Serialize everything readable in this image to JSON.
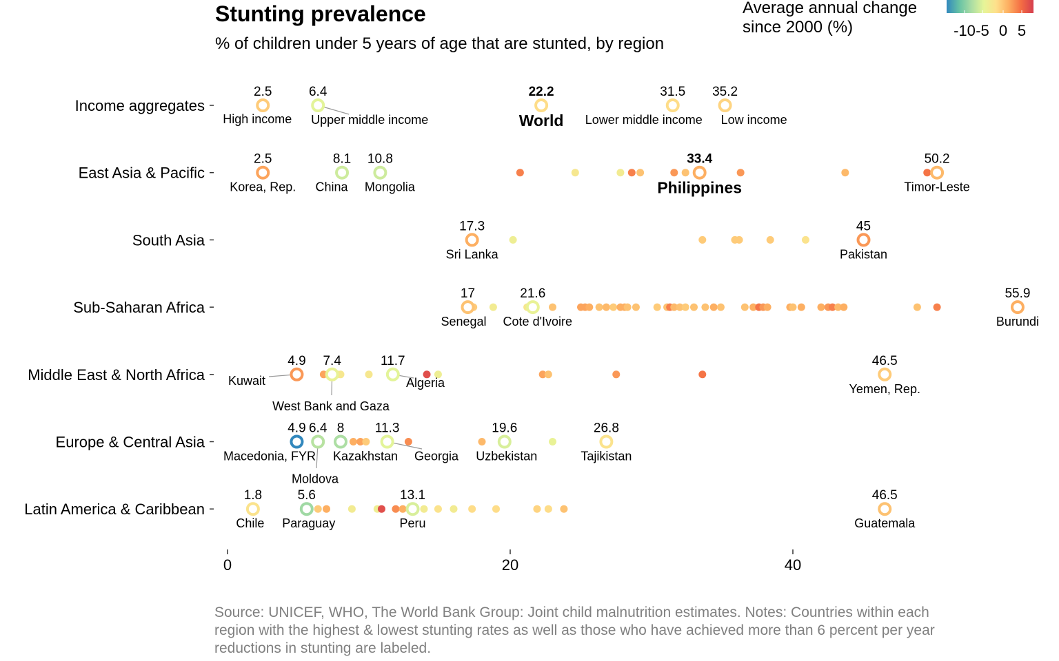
{
  "title": "Stunting prevalence",
  "subtitle": "% of children under 5 years of age that are stunted, by region",
  "legend": {
    "title_line1": "Average annual change",
    "title_line2": "since 2000 (%)",
    "ticks": [
      "-10",
      "-5",
      "0",
      "5"
    ],
    "colors": [
      "#3288bd",
      "#66c2a5",
      "#abdda4",
      "#e6f598",
      "#fee08b",
      "#fdae61",
      "#f46d43",
      "#d53e4f"
    ]
  },
  "source": "Source: UNICEF, WHO, The World Bank Group: Joint child malnutrition estimates. Notes: Countries within each region with the highest & lowest stunting rates as well as those who have achieved more than 6 percent per year reductions in stunting are labeled.",
  "chart_data": {
    "type": "scatter",
    "title": "Stunting prevalence",
    "subtitle": "% of children under 5 years of age that are stunted, by region",
    "xlabel": "",
    "ylabel": "",
    "xlim": [
      -1,
      56.5
    ],
    "x_ticks": [
      0,
      20,
      40
    ],
    "grid": false,
    "color_scale": {
      "name": "Average annual change since 2000 (%)",
      "range": [
        -12,
        7
      ]
    },
    "categories": [
      "Income aggregates",
      "East Asia & Pacific",
      "South Asia",
      "Sub-Saharan Africa",
      "Middle East & North Africa",
      "Europe & Central Asia",
      "Latin America & Caribbean"
    ],
    "series": [
      {
        "region": "Income aggregates",
        "points": [],
        "labeled": [
          {
            "x": 2.5,
            "value": "2.5",
            "label": "High income",
            "change": 0.0
          },
          {
            "x": 6.4,
            "value": "6.4",
            "label": "Upper middle income",
            "change": -4.0
          },
          {
            "x": 22.2,
            "value": "22.2",
            "label": "World",
            "change": -1.0,
            "emphasis": true
          },
          {
            "x": 31.5,
            "value": "31.5",
            "label": "Lower middle income",
            "change": -1.0
          },
          {
            "x": 35.2,
            "value": "35.2",
            "label": "Low income",
            "change": -0.5
          }
        ]
      },
      {
        "region": "East Asia & Pacific",
        "points": [
          {
            "x": 20.7,
            "change": 3.5
          },
          {
            "x": 24.6,
            "change": -2.0
          },
          {
            "x": 27.8,
            "change": -2.5
          },
          {
            "x": 28.6,
            "change": 3.5
          },
          {
            "x": 29.2,
            "change": 0.5
          },
          {
            "x": 31.6,
            "change": 2.5
          },
          {
            "x": 32.4,
            "change": 0.5
          },
          {
            "x": 36.3,
            "change": 2.5
          },
          {
            "x": 43.7,
            "change": 1.0
          },
          {
            "x": 49.5,
            "change": 4.0
          }
        ],
        "labeled": [
          {
            "x": 2.5,
            "value": "2.5",
            "label": "Korea, Rep.",
            "change": 2.0
          },
          {
            "x": 8.1,
            "value": "8.1",
            "label": "China",
            "change": -5.0
          },
          {
            "x": 10.8,
            "value": "10.8",
            "label": "Mongolia",
            "change": -5.0
          },
          {
            "x": 33.4,
            "value": "33.4",
            "label": "Philippines",
            "change": 1.5,
            "emphasis": true
          },
          {
            "x": 50.2,
            "value": "50.2",
            "label": "Timor-Leste",
            "change": 1.0
          }
        ]
      },
      {
        "region": "South Asia",
        "points": [
          {
            "x": 20.2,
            "change": -3.0
          },
          {
            "x": 33.6,
            "change": 0.0
          },
          {
            "x": 35.9,
            "change": 0.0
          },
          {
            "x": 36.2,
            "change": 0.0
          },
          {
            "x": 38.4,
            "change": 0.0
          },
          {
            "x": 40.9,
            "change": -1.5
          }
        ],
        "labeled": [
          {
            "x": 17.3,
            "value": "17.3",
            "label": "Sri Lanka",
            "change": 1.5
          },
          {
            "x": 45,
            "value": "45",
            "label": "Pakistan",
            "change": 2.5
          }
        ]
      },
      {
        "region": "Sub-Saharan Africa",
        "points": [
          {
            "x": 17.4,
            "change": 0.0
          },
          {
            "x": 18.8,
            "change": -2.5
          },
          {
            "x": 21.2,
            "change": -2.0
          },
          {
            "x": 23.0,
            "change": 0.5
          },
          {
            "x": 25.0,
            "change": 2.0
          },
          {
            "x": 25.3,
            "change": 2.0
          },
          {
            "x": 25.6,
            "change": 1.5
          },
          {
            "x": 26.3,
            "change": 0.5
          },
          {
            "x": 26.8,
            "change": 1.0
          },
          {
            "x": 27.3,
            "change": 0.0
          },
          {
            "x": 27.8,
            "change": 1.5
          },
          {
            "x": 28.1,
            "change": 1.5
          },
          {
            "x": 28.3,
            "change": 0.5
          },
          {
            "x": 28.9,
            "change": 0.5
          },
          {
            "x": 30.4,
            "change": 0.0
          },
          {
            "x": 31.1,
            "change": 0.5
          },
          {
            "x": 31.3,
            "change": 3.5
          },
          {
            "x": 31.6,
            "change": 1.0
          },
          {
            "x": 32.0,
            "change": 0.5
          },
          {
            "x": 32.4,
            "change": 0.0
          },
          {
            "x": 33.0,
            "change": 0.5
          },
          {
            "x": 33.8,
            "change": 0.5
          },
          {
            "x": 34.4,
            "change": 1.5
          },
          {
            "x": 34.9,
            "change": 0.5
          },
          {
            "x": 36.6,
            "change": 0.5
          },
          {
            "x": 37.2,
            "change": 1.5
          },
          {
            "x": 37.6,
            "change": 4.0
          },
          {
            "x": 37.9,
            "change": 2.5
          },
          {
            "x": 38.2,
            "change": 1.5
          },
          {
            "x": 39.8,
            "change": 1.5
          },
          {
            "x": 40.0,
            "change": 0.5
          },
          {
            "x": 40.6,
            "change": 1.5
          },
          {
            "x": 42.0,
            "change": 1.5
          },
          {
            "x": 42.5,
            "change": 2.5
          },
          {
            "x": 42.8,
            "change": 3.5
          },
          {
            "x": 43.2,
            "change": 1.0
          },
          {
            "x": 43.6,
            "change": 1.5
          },
          {
            "x": 48.8,
            "change": 0.5
          },
          {
            "x": 50.2,
            "change": 3.5
          }
        ],
        "labeled": [
          {
            "x": 17,
            "value": "17",
            "label": "Senegal",
            "change": 0.5
          },
          {
            "x": 21.6,
            "value": "21.6",
            "label": "Cote d'Ivoire",
            "change": -3.5
          },
          {
            "x": 55.9,
            "value": "55.9",
            "label": "Burundi",
            "change": 1.5
          }
        ]
      },
      {
        "region": "Middle East & North Africa",
        "points": [
          {
            "x": 6.8,
            "change": 2.0
          },
          {
            "x": 7.8,
            "change": -3.0
          },
          {
            "x": 8.0,
            "change": -2.0
          },
          {
            "x": 10.0,
            "change": -2.0
          },
          {
            "x": 14.1,
            "change": 6.0
          },
          {
            "x": 14.9,
            "change": -3.0
          },
          {
            "x": 22.3,
            "change": 2.0
          },
          {
            "x": 22.7,
            "change": 0.5
          },
          {
            "x": 27.5,
            "change": 2.5
          },
          {
            "x": 33.6,
            "change": 4.0
          }
        ],
        "labeled": [
          {
            "x": 4.9,
            "value": "4.9",
            "label": "Kuwait",
            "change": 2.5
          },
          {
            "x": 7.4,
            "value": "7.4",
            "label": "West Bank and Gaza",
            "change": -3.5
          },
          {
            "x": 11.7,
            "value": "11.7",
            "label": "Algeria",
            "change": -4.0
          },
          {
            "x": 46.5,
            "value": "46.5",
            "label": "Yemen, Rep.",
            "change": 0.0
          }
        ]
      },
      {
        "region": "Europe & Central Asia",
        "points": [
          {
            "x": 8.9,
            "change": 1.5
          },
          {
            "x": 9.4,
            "change": 2.0
          },
          {
            "x": 9.8,
            "change": 0.0
          },
          {
            "x": 12.8,
            "change": 3.0
          },
          {
            "x": 18.0,
            "change": 1.0
          },
          {
            "x": 23.0,
            "change": -3.5
          }
        ],
        "labeled": [
          {
            "x": 4.9,
            "value": "4.9",
            "label": "Macedonia, FYR",
            "change": -12.0
          },
          {
            "x": 6.4,
            "value": "6.4",
            "label": "Moldova",
            "change": -6.0
          },
          {
            "x": 8,
            "value": "8",
            "label": "Kazakhstan",
            "change": -6.5
          },
          {
            "x": 11.3,
            "value": "11.3",
            "label": "Georgia",
            "change": -4.0
          },
          {
            "x": 19.6,
            "value": "19.6",
            "label": "Uzbekistan",
            "change": -4.5
          },
          {
            "x": 26.8,
            "value": "26.8",
            "label": "Tajikistan",
            "change": -1.5
          }
        ]
      },
      {
        "region": "Latin America & Caribbean",
        "points": [
          {
            "x": 6.4,
            "change": 0.0
          },
          {
            "x": 7.0,
            "change": 1.5
          },
          {
            "x": 8.8,
            "change": -2.5
          },
          {
            "x": 10.6,
            "change": -3.0
          },
          {
            "x": 10.9,
            "change": 6.0
          },
          {
            "x": 11.9,
            "change": 3.0
          },
          {
            "x": 12.4,
            "change": 1.5
          },
          {
            "x": 13.3,
            "change": -2.5
          },
          {
            "x": 13.9,
            "change": -2.5
          },
          {
            "x": 14.9,
            "change": -1.5
          },
          {
            "x": 16.0,
            "change": -2.5
          },
          {
            "x": 17.3,
            "change": -1.0
          },
          {
            "x": 19.0,
            "change": -1.0
          },
          {
            "x": 21.9,
            "change": -0.5
          },
          {
            "x": 22.7,
            "change": -1.0
          },
          {
            "x": 23.8,
            "change": 0.5
          }
        ],
        "labeled": [
          {
            "x": 1.8,
            "value": "1.8",
            "label": "Chile",
            "change": -1.5
          },
          {
            "x": 5.6,
            "value": "5.6",
            "label": "Paraguay",
            "change": -7.0
          },
          {
            "x": 13.1,
            "value": "13.1",
            "label": "Peru",
            "change": -4.5
          },
          {
            "x": 46.5,
            "value": "46.5",
            "label": "Guatemala",
            "change": 0.5
          }
        ]
      }
    ]
  }
}
